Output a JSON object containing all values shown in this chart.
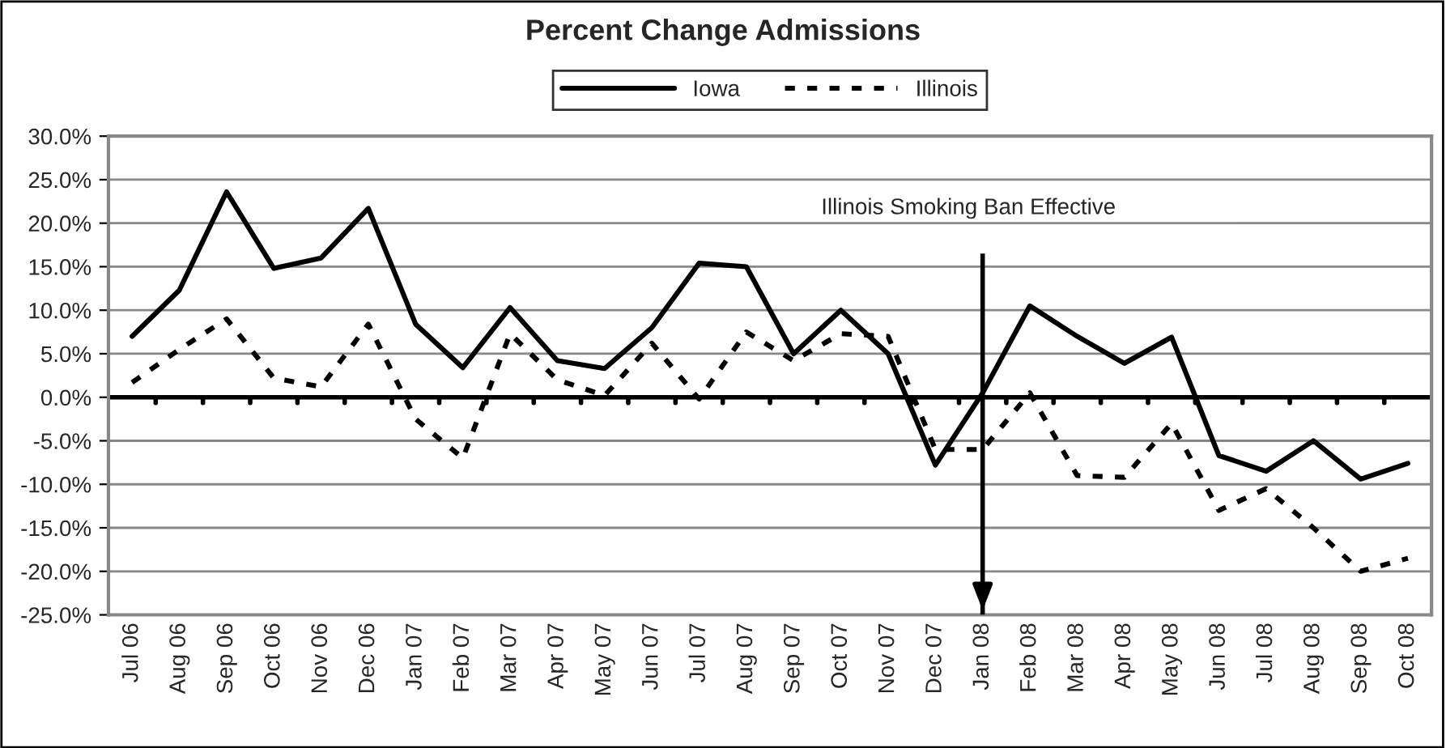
{
  "chart_data": {
    "type": "line",
    "title": "Percent Change Admissions",
    "categories": [
      "Jul 06",
      "Aug 06",
      "Sep 06",
      "Oct 06",
      "Nov 06",
      "Dec 06",
      "Jan 07",
      "Feb 07",
      "Mar 07",
      "Apr 07",
      "May 07",
      "Jun 07",
      "Jul 07",
      "Aug 07",
      "Sep 07",
      "Oct 07",
      "Nov 07",
      "Dec 07",
      "Jan 08",
      "Feb 08",
      "Mar 08",
      "Apr 08",
      "May 08",
      "Jun 08",
      "Jul 08",
      "Aug 08",
      "Sep 08",
      "Oct 08"
    ],
    "series": [
      {
        "name": "Iowa",
        "color": "#000000",
        "line_style": "solid",
        "values": [
          7.0,
          12.3,
          23.6,
          14.8,
          16.0,
          21.7,
          8.4,
          3.4,
          10.3,
          4.2,
          3.3,
          8.0,
          15.4,
          15.0,
          5.0,
          10.0,
          5.0,
          -7.8,
          0.5,
          10.5,
          7.0,
          3.9,
          6.9,
          -6.7,
          -8.5,
          -5.0,
          -9.4,
          -7.6
        ]
      },
      {
        "name": "Illinois",
        "color": "#000000",
        "line_style": "dotted",
        "values": [
          1.7,
          5.5,
          9.0,
          2.2,
          1.2,
          8.4,
          -2.5,
          -7.0,
          7.3,
          2.0,
          0.2,
          6.2,
          -0.2,
          7.5,
          4.2,
          7.3,
          7.0,
          -6.0,
          -6.0,
          0.5,
          -9.0,
          -9.2,
          -3.0,
          -13.0,
          -10.5,
          -15.0,
          -20.0,
          -18.5
        ]
      }
    ],
    "ylim": [
      -25,
      30
    ],
    "yticks": [
      {
        "value": -25,
        "label": "-25.0%"
      },
      {
        "value": -20,
        "label": "-20.0%"
      },
      {
        "value": -15,
        "label": "-15.0%"
      },
      {
        "value": -10,
        "label": "-10.0%"
      },
      {
        "value": -5,
        "label": "-5.0%"
      },
      {
        "value": 0,
        "label": "0.0%"
      },
      {
        "value": 5,
        "label": "5.0%"
      },
      {
        "value": 10,
        "label": "10.0%"
      },
      {
        "value": 15,
        "label": "15.0%"
      },
      {
        "value": 20,
        "label": "20.0%"
      },
      {
        "value": 25,
        "label": "25.0%"
      },
      {
        "value": 30,
        "label": "30.0%"
      }
    ],
    "grid": "y",
    "legend": "top",
    "marker": "none",
    "ref_lines": [
      {
        "axis": "x",
        "value": "Jan 08",
        "label": "Illinois Smoking Ban Effective"
      }
    ]
  }
}
